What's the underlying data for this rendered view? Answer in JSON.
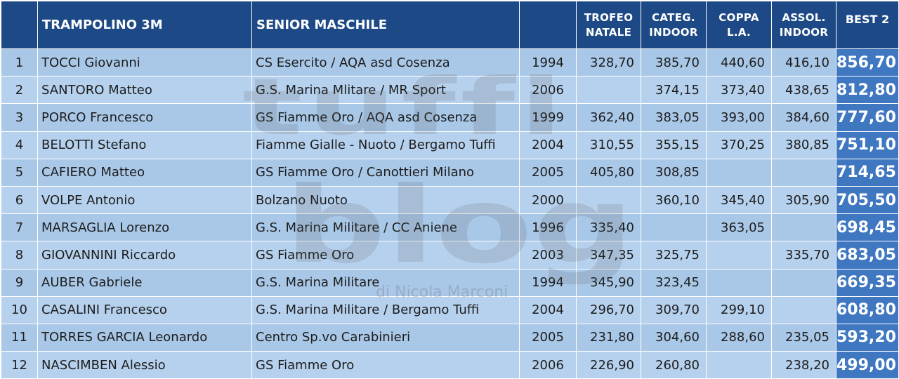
{
  "header": {
    "event": "TRAMPOLINO 3M",
    "category": "SENIOR MASCHILE",
    "year": "",
    "col1": [
      "TROFEO",
      "NATALE"
    ],
    "col2": [
      "CATEG.",
      "INDOOR"
    ],
    "col3": [
      "COPPA",
      "L.A."
    ],
    "col4": [
      "ASSOL.",
      "INDOOR"
    ],
    "best": "BEST 2"
  },
  "watermark": {
    "line1": "tuffi",
    "line2": "blog",
    "line3": "di Nicola Marconi"
  },
  "rows": [
    {
      "pos": "1",
      "name": "TOCCI Giovanni",
      "club": "CS Esercito / AQA asd Cosenza",
      "year": "1994",
      "s1": "328,70",
      "s2": "385,70",
      "s3": "440,60",
      "s4": "416,10",
      "best": "856,70"
    },
    {
      "pos": "2",
      "name": "SANTORO Matteo",
      "club": "G.S. Marina Mlitare / MR Sport",
      "year": "2006",
      "s1": "",
      "s2": "374,15",
      "s3": "373,40",
      "s4": "438,65",
      "best": "812,80"
    },
    {
      "pos": "3",
      "name": "PORCO Francesco",
      "club": "GS Fiamme Oro / AQA asd Cosenza",
      "year": "1999",
      "s1": "362,40",
      "s2": "383,05",
      "s3": "393,00",
      "s4": "384,60",
      "best": "777,60"
    },
    {
      "pos": "4",
      "name": "BELOTTI Stefano",
      "club": "Fiamme Gialle - Nuoto / Bergamo Tuffi",
      "year": "2004",
      "s1": "310,55",
      "s2": "355,15",
      "s3": "370,25",
      "s4": "380,85",
      "best": "751,10"
    },
    {
      "pos": "5",
      "name": "CAFIERO Matteo",
      "club": "GS Fiamme Oro / Canottieri Milano",
      "year": "2005",
      "s1": "405,80",
      "s2": "308,85",
      "s3": "",
      "s4": "",
      "best": "714,65"
    },
    {
      "pos": "6",
      "name": "VOLPE Antonio",
      "club": "Bolzano Nuoto",
      "year": "2000",
      "s1": "",
      "s2": "360,10",
      "s3": "345,40",
      "s4": "305,90",
      "best": "705,50"
    },
    {
      "pos": "7",
      "name": "MARSAGLIA Lorenzo",
      "club": "G.S. Marina Militare / CC Aniene",
      "year": "1996",
      "s1": "335,40",
      "s2": "",
      "s3": "363,05",
      "s4": "",
      "best": "698,45"
    },
    {
      "pos": "8",
      "name": "GIOVANNINI Riccardo",
      "club": "GS Fiamme Oro",
      "year": "2003",
      "s1": "347,35",
      "s2": "325,75",
      "s3": "",
      "s4": "335,70",
      "best": "683,05"
    },
    {
      "pos": "9",
      "name": "AUBER Gabriele",
      "club": "G.S. Marina Militare",
      "year": "1994",
      "s1": "345,90",
      "s2": "323,45",
      "s3": "",
      "s4": "",
      "best": "669,35"
    },
    {
      "pos": "10",
      "name": "CASALINI Francesco",
      "club": "G.S. Marina Militare / Bergamo Tuffi",
      "year": "2004",
      "s1": "296,70",
      "s2": "309,70",
      "s3": "299,10",
      "s4": "",
      "best": "608,80"
    },
    {
      "pos": "11",
      "name": "TORRES GARCIA Leonardo",
      "club": "Centro Sp.vo Carabinieri",
      "year": "2005",
      "s1": "231,80",
      "s2": "304,60",
      "s3": "288,60",
      "s4": "235,05",
      "best": "593,20"
    },
    {
      "pos": "12",
      "name": "NASCIMBEN Alessio",
      "club": "GS Fiamme Oro",
      "year": "2006",
      "s1": "226,90",
      "s2": "260,80",
      "s3": "",
      "s4": "238,20",
      "best": "499,00"
    }
  ]
}
